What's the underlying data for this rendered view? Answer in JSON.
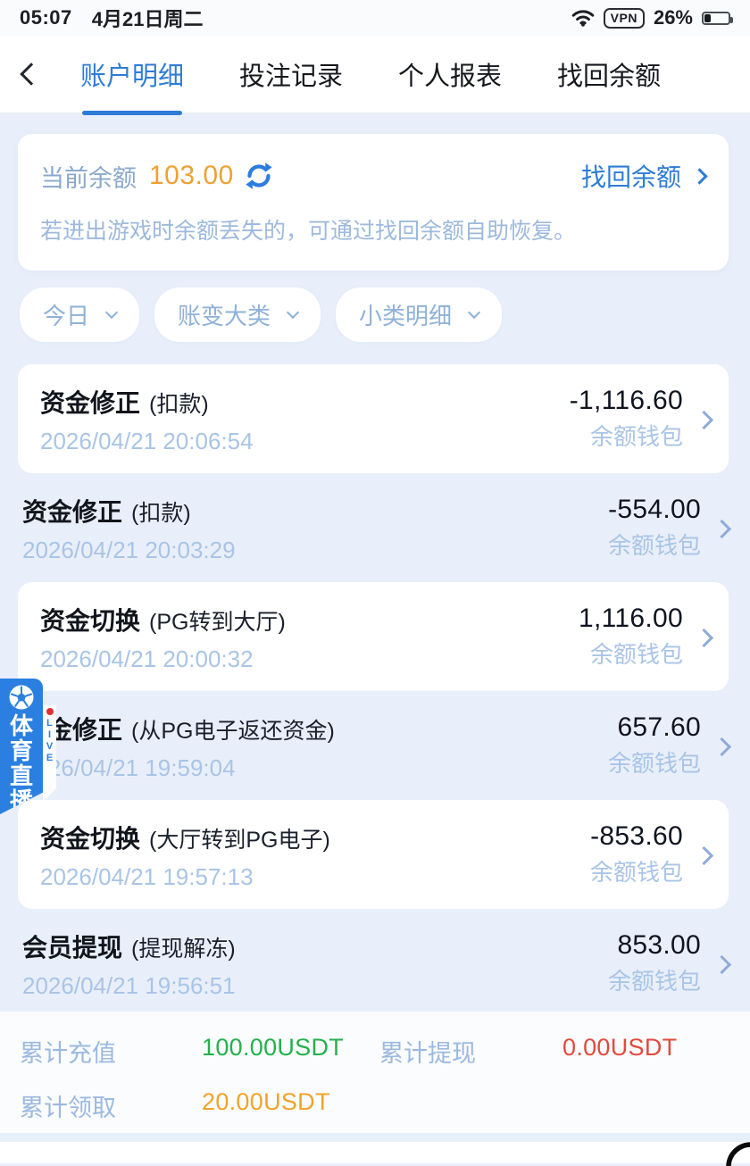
{
  "status_bar": {
    "time": "05:07",
    "date": "4月21日周二",
    "vpn_label": "VPN",
    "battery_percent": "26%"
  },
  "nav": {
    "active_tab_index": 0,
    "tabs": [
      {
        "label": "账户明细"
      },
      {
        "label": "投注记录"
      },
      {
        "label": "个人报表"
      },
      {
        "label": "找回余额"
      }
    ]
  },
  "balance_card": {
    "label": "当前余额",
    "amount": "103.00",
    "recover_link": "找回余额",
    "hint": "若进出游戏时余额丢失的，可通过找回余额自助恢复。"
  },
  "filters": [
    {
      "label": "今日"
    },
    {
      "label": "账变大类"
    },
    {
      "label": "小类明细"
    }
  ],
  "transactions": [
    {
      "type": "资金修正",
      "detail": "(扣款)",
      "amount": "-1,116.60",
      "wallet": "余额钱包",
      "datetime": "2026/04/21 20:06:54"
    },
    {
      "type": "资金修正",
      "detail": "(扣款)",
      "amount": "-554.00",
      "wallet": "余额钱包",
      "datetime": "2026/04/21 20:03:29"
    },
    {
      "type": "资金切换",
      "detail": "(PG转到大厅)",
      "amount": "1,116.00",
      "wallet": "余额钱包",
      "datetime": "2026/04/21 20:00:32"
    },
    {
      "type": "资金修正",
      "detail": "(从PG电子返还资金)",
      "amount": "657.60",
      "wallet": "余额钱包",
      "datetime": "2026/04/21 19:59:04"
    },
    {
      "type": "资金切换",
      "detail": "(大厅转到PG电子)",
      "amount": "-853.60",
      "wallet": "余额钱包",
      "datetime": "2026/04/21 19:57:13"
    },
    {
      "type": "会员提现",
      "detail": "(提现解冻)",
      "amount": "853.00",
      "wallet": "余额钱包",
      "datetime": "2026/04/21 19:56:51"
    }
  ],
  "summary": {
    "rows": [
      {
        "label": "累计充值",
        "value": "100.00USDT",
        "color": "#22b14c"
      },
      {
        "label": "累计提现",
        "value": "0.00USDT",
        "color": "#e3493e"
      },
      {
        "label": "累计领取",
        "value": "20.00USDT",
        "color": "#f0a329"
      }
    ]
  },
  "float_badge": {
    "title": "体育直播",
    "live_label": "LIVE"
  },
  "colors": {
    "accent_blue": "#2e7cd6",
    "amount_orange": "#efa132",
    "muted_blue": "#9fbcdf",
    "positive_green": "#22b14c",
    "negative_red": "#e3493e",
    "claim_orange": "#f0a329",
    "badge_blue": "#2a7fe0",
    "page_background": "#e9effa"
  }
}
